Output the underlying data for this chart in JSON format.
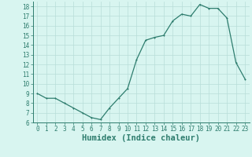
{
  "x": [
    0,
    1,
    2,
    3,
    4,
    5,
    6,
    7,
    8,
    9,
    10,
    11,
    12,
    13,
    14,
    15,
    16,
    17,
    18,
    19,
    20,
    21,
    22,
    23
  ],
  "y": [
    9.0,
    8.5,
    8.5,
    8.0,
    7.5,
    7.0,
    6.5,
    6.3,
    7.5,
    8.5,
    9.5,
    12.5,
    14.5,
    14.8,
    15.0,
    16.5,
    17.2,
    17.0,
    18.2,
    17.8,
    17.8,
    16.8,
    12.2,
    10.5
  ],
  "line_color": "#2e7d6e",
  "marker_color": "#2e7d6e",
  "bg_color": "#d8f5f0",
  "grid_color": "#b8ddd8",
  "xlabel": "Humidex (Indice chaleur)",
  "ylim": [
    6,
    18.5
  ],
  "xlim": [
    -0.5,
    23.5
  ],
  "yticks": [
    6,
    7,
    8,
    9,
    10,
    11,
    12,
    13,
    14,
    15,
    16,
    17,
    18
  ],
  "xticks": [
    0,
    1,
    2,
    3,
    4,
    5,
    6,
    7,
    8,
    9,
    10,
    11,
    12,
    13,
    14,
    15,
    16,
    17,
    18,
    19,
    20,
    21,
    22,
    23
  ],
  "tick_label_fontsize": 5.5,
  "xlabel_fontsize": 7.5,
  "xlabel_fontweight": "bold",
  "linewidth": 0.9,
  "markersize": 2.0
}
